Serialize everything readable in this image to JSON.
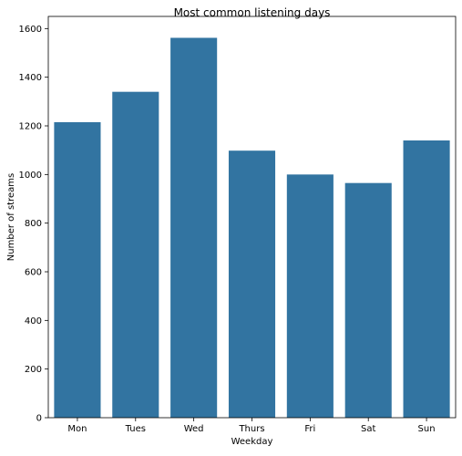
{
  "chart_data": {
    "type": "bar",
    "title": "Most common listening days",
    "xlabel": "Weekday",
    "ylabel": "Number of streams",
    "categories": [
      "Mon",
      "Tues",
      "Wed",
      "Thurs",
      "Fri",
      "Sat",
      "Sun"
    ],
    "values": [
      1215,
      1340,
      1562,
      1098,
      1000,
      965,
      1140
    ],
    "ylim": [
      0,
      1650
    ],
    "yticks": [
      0,
      200,
      400,
      600,
      800,
      1000,
      1200,
      1400,
      1600
    ],
    "bar_color": "#3274a1",
    "grid": false,
    "legend": "none"
  }
}
